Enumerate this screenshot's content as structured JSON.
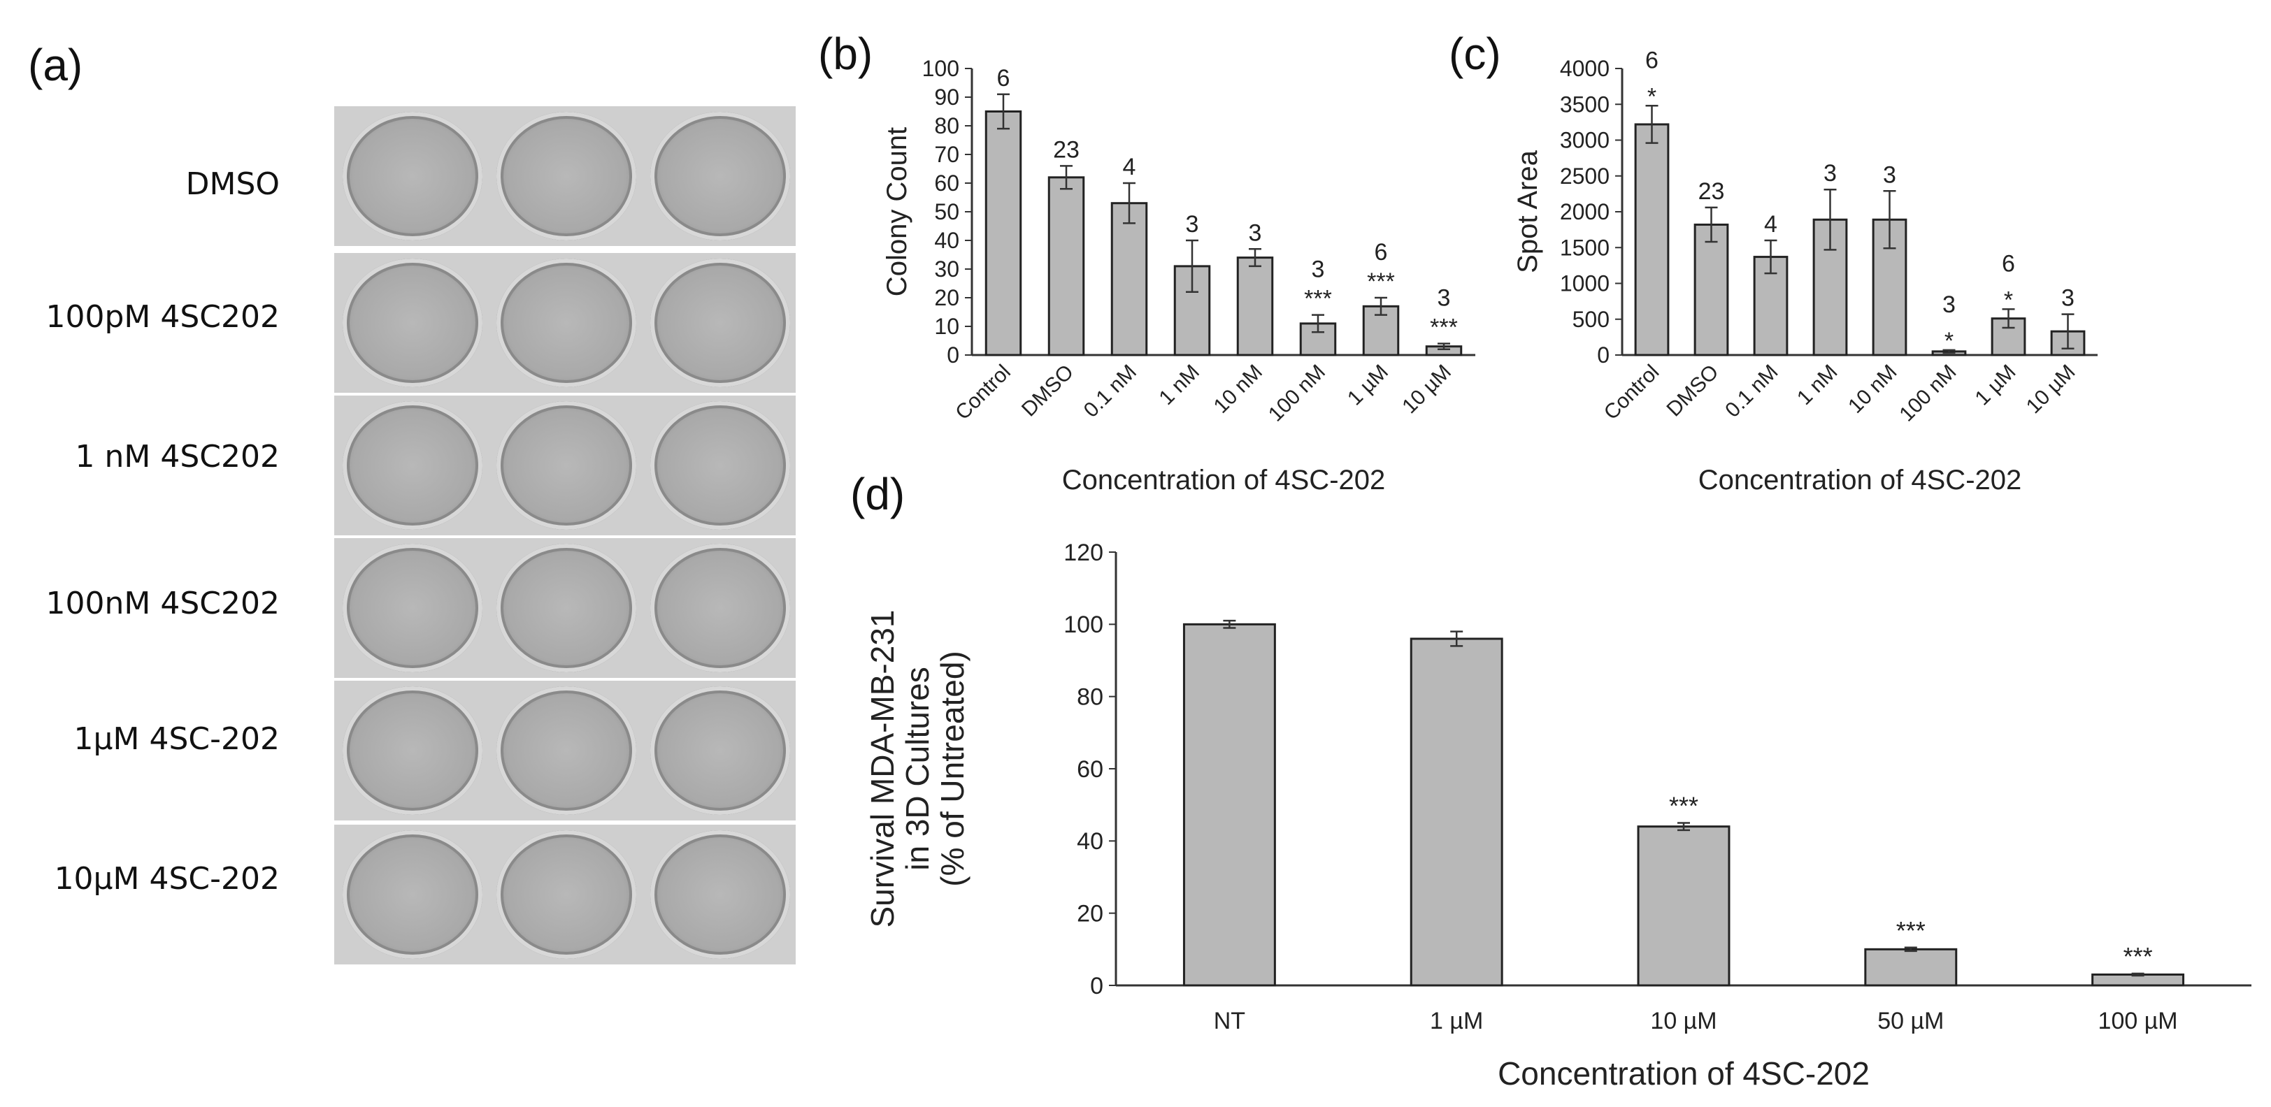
{
  "panel_labels": {
    "a": "(a)",
    "b": "(b)",
    "c": "(c)",
    "d": "(d)"
  },
  "panel_a": {
    "rows": [
      "DMSO",
      "100pM 4SC202",
      "1 nM 4SC202",
      "100nM 4SC202",
      "1µM 4SC-202",
      "10µM 4SC-202"
    ]
  },
  "colors": {
    "bar": "#b8b8b8",
    "bar_stroke": "#222222",
    "axis": "#333333"
  },
  "chart_data": [
    {
      "id": "b",
      "type": "bar",
      "categories": [
        "Control",
        "DMSO",
        "0.1 nM",
        "1 nM",
        "10 nM",
        "100 nM",
        "1 µM",
        "10 µM"
      ],
      "values": [
        85,
        62,
        53,
        31,
        34,
        11,
        17,
        3
      ],
      "errors": [
        6,
        4,
        7,
        9,
        3,
        3,
        3,
        1
      ],
      "n_labels": [
        "6",
        "23",
        "4",
        "3",
        "3",
        "3",
        "6",
        "3"
      ],
      "sig_labels": [
        "",
        "",
        "",
        "",
        "",
        "***",
        "***",
        "***"
      ],
      "xlabel": "Concentration of 4SC-202",
      "ylabel": "Colony Count",
      "ylim": [
        0,
        100
      ],
      "yticks": [
        0,
        10,
        20,
        30,
        40,
        50,
        60,
        70,
        80,
        90,
        100
      ],
      "grid": false
    },
    {
      "id": "c",
      "type": "bar",
      "categories": [
        "Control",
        "DMSO",
        "0.1 nM",
        "1 nM",
        "10 nM",
        "100 nM",
        "1 µM",
        "10 µM"
      ],
      "values": [
        3220,
        1820,
        1370,
        1890,
        1890,
        50,
        510,
        330
      ],
      "errors": [
        260,
        240,
        230,
        420,
        400,
        20,
        130,
        240
      ],
      "n_labels": [
        "6",
        "23",
        "4",
        "3",
        "3",
        "3",
        "6",
        "3"
      ],
      "sig_labels": [
        "*",
        "",
        "",
        "",
        "",
        "*",
        "*",
        ""
      ],
      "xlabel": "Concentration of 4SC-202",
      "ylabel": "Spot Area",
      "ylim": [
        0,
        4000
      ],
      "yticks": [
        0,
        500,
        1000,
        1500,
        2000,
        2500,
        3000,
        3500,
        4000
      ],
      "grid": false
    },
    {
      "id": "d",
      "type": "bar",
      "categories": [
        "NT",
        "1 µM",
        "10 µM",
        "50 µM",
        "100 µM"
      ],
      "values": [
        100,
        96,
        44,
        10,
        3
      ],
      "errors": [
        1,
        2,
        1,
        0.5,
        0.3
      ],
      "sig_labels": [
        "",
        "",
        "***",
        "***",
        "***"
      ],
      "xlabel": "Concentration of 4SC-202",
      "ylabel_lines": [
        "Survival MDA-MB-231",
        "in 3D Cultures",
        "(% of Untreated)"
      ],
      "ylim": [
        0,
        120
      ],
      "yticks": [
        0,
        20,
        40,
        60,
        80,
        100,
        120
      ],
      "grid": false
    }
  ]
}
